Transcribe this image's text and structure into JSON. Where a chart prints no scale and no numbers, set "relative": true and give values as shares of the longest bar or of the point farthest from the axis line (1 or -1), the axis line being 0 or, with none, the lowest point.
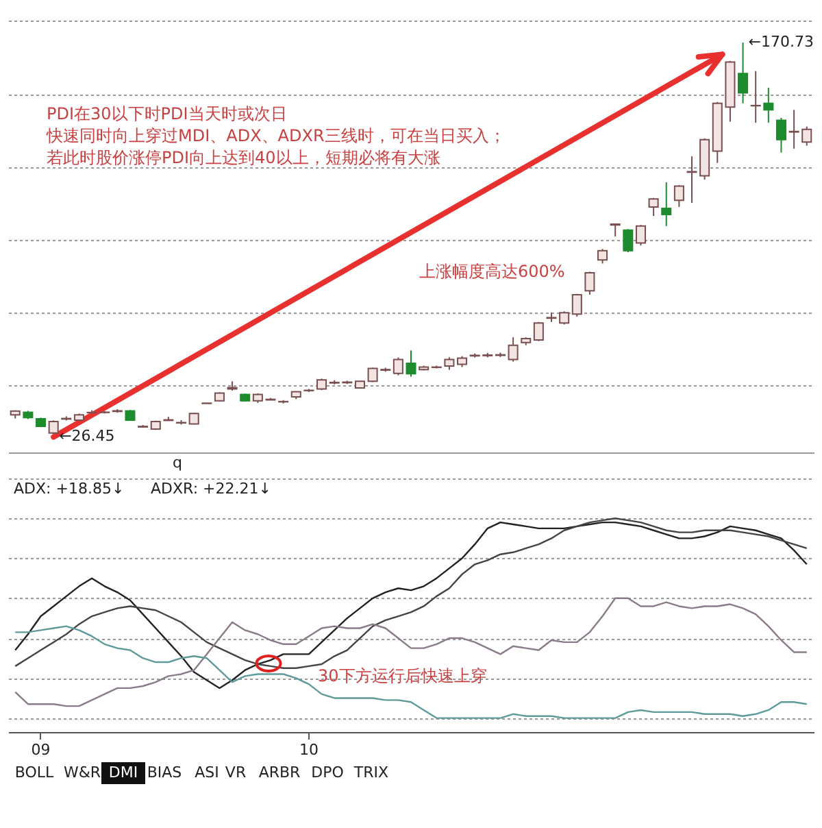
{
  "chart_data": [
    {
      "type": "candlestick",
      "categories": [
        null,
        null,
        null,
        null,
        null,
        null,
        null,
        null,
        null,
        null,
        null,
        null,
        null,
        null,
        null,
        null,
        null,
        null,
        null,
        null,
        null,
        null,
        null,
        null,
        null,
        null,
        null,
        null,
        null,
        null,
        null,
        null,
        null,
        null,
        null,
        null,
        null,
        null,
        null,
        null,
        null,
        null,
        null,
        null,
        null,
        null,
        null,
        null,
        null,
        null,
        null,
        null,
        null,
        null,
        null,
        null,
        null,
        null,
        null,
        null,
        null,
        null,
        null
      ],
      "ohlc": [
        [
          34.5,
          36.2,
          33.2,
          35.9
        ],
        [
          35.5,
          36.0,
          33.0,
          33.5
        ],
        [
          33.1,
          33.5,
          30.0,
          30.3
        ],
        [
          27.9,
          32.5,
          26.45,
          32.1
        ],
        [
          33.0,
          34.0,
          32.5,
          33.2
        ],
        [
          32.6,
          35.0,
          32.3,
          34.5
        ],
        [
          35.3,
          36.2,
          34.6,
          35.4
        ],
        [
          35.4,
          35.9,
          35.0,
          35.5
        ],
        [
          35.8,
          36.6,
          35.3,
          36.0
        ],
        [
          36.0,
          36.3,
          32.3,
          32.6
        ],
        [
          30.1,
          30.8,
          29.8,
          30.3
        ],
        [
          29.3,
          32.4,
          29.0,
          32.1
        ],
        [
          32.5,
          33.8,
          32.3,
          32.7
        ],
        [
          31.6,
          32.6,
          31.0,
          31.7
        ],
        [
          31.2,
          35.3,
          31.0,
          35.0
        ],
        [
          38.7,
          38.9,
          38.6,
          38.8
        ],
        [
          39.7,
          42.8,
          39.5,
          42.5
        ],
        [
          44.0,
          46.8,
          43.4,
          44.5
        ],
        [
          42.0,
          42.3,
          39.5,
          39.7
        ],
        [
          39.7,
          42.4,
          38.9,
          42.0
        ],
        [
          40.0,
          40.7,
          39.8,
          40.2
        ],
        [
          39.3,
          39.9,
          38.7,
          39.4
        ],
        [
          41.1,
          43.0,
          40.3,
          43.0
        ],
        [
          43.4,
          44.0,
          42.9,
          43.5
        ],
        [
          44.0,
          47.8,
          43.6,
          47.3
        ],
        [
          46.2,
          47.2,
          45.7,
          46.4
        ],
        [
          46.3,
          47.0,
          45.8,
          46.5
        ],
        [
          44.4,
          47.0,
          44.2,
          46.8
        ],
        [
          46.8,
          51.8,
          46.5,
          51.5
        ],
        [
          50.9,
          51.8,
          50.3,
          51.1
        ],
        [
          49.7,
          55.5,
          49.0,
          54.8
        ],
        [
          53.4,
          58.1,
          48.5,
          49.6
        ],
        [
          51.1,
          52.5,
          50.8,
          52.0
        ],
        [
          51.9,
          52.5,
          51.5,
          52.0
        ],
        [
          52.4,
          55.6,
          51.0,
          54.8
        ],
        [
          53.0,
          56.0,
          52.0,
          55.3
        ],
        [
          56.1,
          57.0,
          55.5,
          56.3
        ],
        [
          56.2,
          57.2,
          55.6,
          56.4
        ],
        [
          56.3,
          57.3,
          55.7,
          56.5
        ],
        [
          54.8,
          62.9,
          54.0,
          60.0
        ],
        [
          61.0,
          62.9,
          60.0,
          62.4
        ],
        [
          61.9,
          68.5,
          61.5,
          68.1
        ],
        [
          69.9,
          72.0,
          68.5,
          70.1
        ],
        [
          68.1,
          72.4,
          67.6,
          71.9
        ],
        [
          71.4,
          78.8,
          70.5,
          78.5
        ],
        [
          79.9,
          86.9,
          78.5,
          86.5
        ],
        [
          91.2,
          95.2,
          89.9,
          94.6
        ],
        [
          104.0,
          104.6,
          99.8,
          104.3
        ],
        [
          102.1,
          102.5,
          94.0,
          94.6
        ],
        [
          97.4,
          104.0,
          96.5,
          103.6
        ],
        [
          110.6,
          113.9,
          107.3,
          113.5
        ],
        [
          110.1,
          119.6,
          103.6,
          107.8
        ],
        [
          113.0,
          118.6,
          110.6,
          118.2
        ],
        [
          123.3,
          129.1,
          112.1,
          123.5
        ],
        [
          122.0,
          135.7,
          120.6,
          135.2
        ],
        [
          131.0,
          149.0,
          126.7,
          148.5
        ],
        [
          147.1,
          164.0,
          141.8,
          163.6
        ],
        [
          159.4,
          170.73,
          148.5,
          152.3
        ],
        [
          147.6,
          160.3,
          141.4,
          147.7
        ],
        [
          148.5,
          154.2,
          141.4,
          146.1
        ],
        [
          142.3,
          143.2,
          130.5,
          135.2
        ],
        [
          138.0,
          146.1,
          131.9,
          138.2
        ],
        [
          134.3,
          140.0,
          133.0,
          139.0
        ]
      ],
      "colors": [
        "#f3e4e4",
        "#1e8c2e",
        "#1e8c2e",
        "#f3e4e4",
        "#f3e4e4",
        "#f3e4e4",
        "#f3e4e4",
        "#f3e4e4",
        "#f3e4e4",
        "#1e8c2e",
        "#f3e4e4",
        "#f3e4e4",
        "#f3e4e4",
        "#f3e4e4",
        "#f3e4e4",
        "#f3e4e4",
        "#f3e4e4",
        "#f3e4e4",
        "#1e8c2e",
        "#f3e4e4",
        "#f3e4e4",
        "#f3e4e4",
        "#f3e4e4",
        "#f3e4e4",
        "#f3e4e4",
        "#f3e4e4",
        "#f3e4e4",
        "#f3e4e4",
        "#f3e4e4",
        "#f3e4e4",
        "#f3e4e4",
        "#1e8c2e",
        "#f3e4e4",
        "#f3e4e4",
        "#f3e4e4",
        "#f3e4e4",
        "#f3e4e4",
        "#f3e4e4",
        "#f3e4e4",
        "#f3e4e4",
        "#f3e4e4",
        "#f3e4e4",
        "#f3e4e4",
        "#f3e4e4",
        "#f3e4e4",
        "#f3e4e4",
        "#f3e4e4",
        "#f3e4e4",
        "#1e8c2e",
        "#f3e4e4",
        "#f3e4e4",
        "#1e8c2e",
        "#f3e4e4",
        "#f3e4e4",
        "#f3e4e4",
        "#f3e4e4",
        "#f3e4e4",
        "#1e8c2e",
        "#f3e4e4",
        "#1e8c2e",
        "#1e8c2e",
        "#f3e4e4",
        "#f3e4e4"
      ],
      "ylim": [
        20.8,
        186.3
      ],
      "yticks": [
        {
          "value": 45.4,
          "label": null
        },
        {
          "value": 71.9,
          "label": null
        },
        {
          "value": 98.4,
          "label": null
        },
        {
          "value": 125.3,
          "label": null
        },
        {
          "value": 151.8,
          "label": null
        },
        {
          "value": 178.8,
          "label": null
        }
      ],
      "grid": "y",
      "tick_labels": false,
      "annotations": [
        "PDI在30以下时PDI当天时或次日",
        "快速同时向上穿过MDI、ADX、ADXR三线时，可在当日买入；",
        "若此时股价涨停PDI向上达到40以上，短期必将有大涨",
        "上涨幅度高达600%",
        "q",
        "←170.73",
        "←26.45"
      ]
    },
    {
      "type": "line",
      "relative": true,
      "categories": [
        null,
        null,
        "09",
        null,
        null,
        null,
        null,
        null,
        null,
        null,
        null,
        null,
        null,
        null,
        null,
        null,
        null,
        null,
        null,
        null,
        null,
        null,
        null,
        "10",
        null,
        null,
        null,
        null,
        null,
        null,
        null,
        null,
        null,
        null,
        null,
        null,
        null,
        null,
        null,
        null,
        null,
        null,
        null,
        null,
        null,
        null,
        null,
        null,
        null,
        null,
        null,
        null,
        null,
        null,
        null,
        null,
        null,
        null,
        null,
        null,
        null,
        null,
        null
      ],
      "series": [
        {
          "color": "#222222",
          "values": [
            0.34,
            0.42,
            0.51,
            0.56,
            0.61,
            0.66,
            0.7,
            0.66,
            0.63,
            0.59,
            0.52,
            0.45,
            0.38,
            0.31,
            0.23,
            0.19,
            0.15,
            0.19,
            0.24,
            0.27,
            0.29,
            0.32,
            0.32,
            0.32,
            0.38,
            0.44,
            0.5,
            0.55,
            0.6,
            0.63,
            0.65,
            0.64,
            0.66,
            0.7,
            0.75,
            0.8,
            0.87,
            0.95,
            0.98,
            0.97,
            0.96,
            0.95,
            0.95,
            0.95,
            0.96,
            0.97,
            0.98,
            0.98,
            0.97,
            0.96,
            0.94,
            0.92,
            0.9,
            0.9,
            0.91,
            0.93,
            0.96,
            0.95,
            0.94,
            0.92,
            0.9,
            0.84,
            0.77
          ]
        },
        {
          "color": "#444444",
          "values": [
            0.26,
            0.3,
            0.34,
            0.38,
            0.42,
            0.47,
            0.51,
            0.53,
            0.55,
            0.56,
            0.55,
            0.54,
            0.51,
            0.48,
            0.43,
            0.38,
            0.35,
            0.32,
            0.29,
            0.27,
            0.26,
            0.25,
            0.25,
            0.26,
            0.27,
            0.31,
            0.34,
            0.4,
            0.46,
            0.49,
            0.51,
            0.53,
            0.56,
            0.61,
            0.65,
            0.72,
            0.77,
            0.79,
            0.82,
            0.83,
            0.85,
            0.87,
            0.9,
            0.94,
            0.96,
            0.98,
            0.99,
            1.0,
            0.99,
            0.98,
            0.96,
            0.94,
            0.93,
            0.93,
            0.94,
            0.94,
            0.94,
            0.93,
            0.92,
            0.91,
            0.89,
            0.87,
            0.85
          ]
        },
        {
          "color": "#8a7a8a",
          "values": [
            0.13,
            0.07,
            0.07,
            0.07,
            0.06,
            0.06,
            0.09,
            0.12,
            0.15,
            0.15,
            0.16,
            0.18,
            0.21,
            0.22,
            0.24,
            0.32,
            0.4,
            0.48,
            0.44,
            0.42,
            0.39,
            0.37,
            0.37,
            0.41,
            0.45,
            0.46,
            0.45,
            0.45,
            0.47,
            0.45,
            0.4,
            0.35,
            0.35,
            0.37,
            0.4,
            0.4,
            0.38,
            0.35,
            0.32,
            0.36,
            0.35,
            0.34,
            0.39,
            0.38,
            0.38,
            0.43,
            0.51,
            0.6,
            0.6,
            0.56,
            0.56,
            0.58,
            0.56,
            0.55,
            0.56,
            0.56,
            0.57,
            0.55,
            0.52,
            0.46,
            0.39,
            0.33,
            0.33
          ]
        },
        {
          "color": "#5f9a9a",
          "values": [
            0.43,
            0.43,
            0.44,
            0.45,
            0.46,
            0.44,
            0.41,
            0.37,
            0.35,
            0.34,
            0.3,
            0.28,
            0.28,
            0.3,
            0.31,
            0.3,
            0.24,
            0.18,
            0.21,
            0.22,
            0.22,
            0.22,
            0.2,
            0.17,
            0.12,
            0.1,
            0.1,
            0.1,
            0.1,
            0.09,
            0.09,
            0.08,
            0.04,
            0,
            0,
            0,
            0,
            0,
            0,
            0.02,
            0.01,
            0.01,
            0.01,
            0,
            0,
            0,
            0,
            0,
            0.03,
            0.04,
            0.03,
            0.03,
            0.03,
            0.03,
            0.02,
            0.02,
            0.02,
            0.01,
            0.02,
            0.04,
            0.08,
            0.08,
            0.07
          ]
        }
      ],
      "grid": "y",
      "tick_labels": "x",
      "annotations": [
        "ADX: +18.85↓",
        "ADXR: +22.21↓",
        "30下方运行后快速上穿",
        "BOLL",
        "W&R",
        "DMI",
        "BIAS",
        "ASI",
        "VR",
        "ARBR",
        "DPO",
        "TRIX"
      ]
    }
  ]
}
